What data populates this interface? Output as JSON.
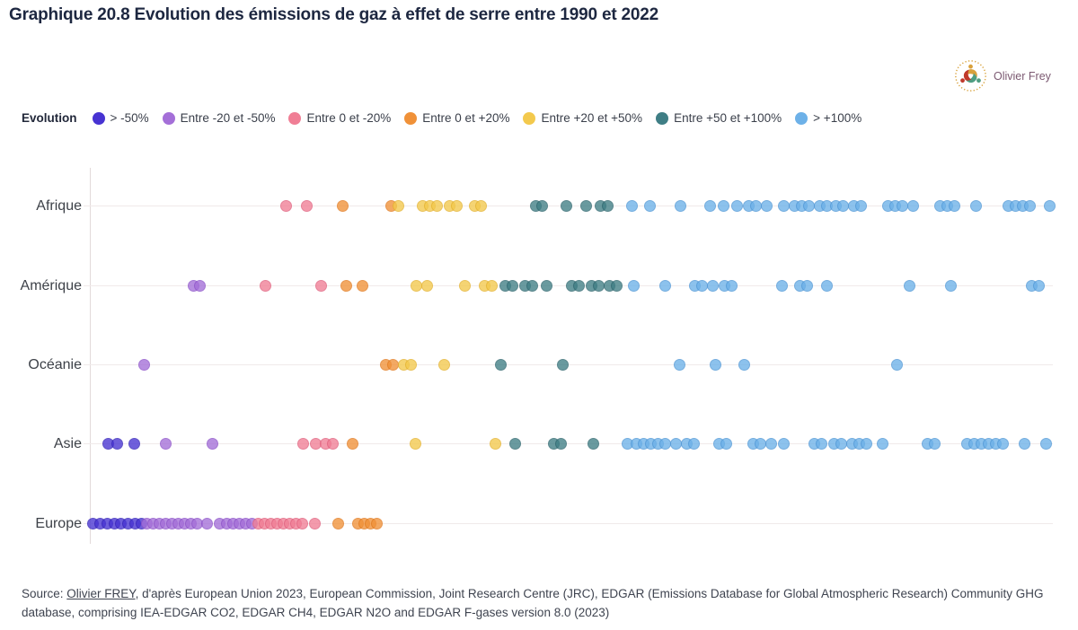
{
  "header": {
    "title": "Graphique 20.8 Evolution des émissions de gaz à effet de serre entre 1990 et 2022"
  },
  "logo": {
    "text": "Olivier Frey"
  },
  "source": {
    "prefix": "Source: ",
    "link_text": "Olivier FREY",
    "rest": ", d'après European Union 2023, European Commission, Joint Research Centre (JRC), EDGAR (Emissions Database for Global Atmospheric Research) Community GHG database, comprising IEA-EDGAR CO2, EDGAR CH4, EDGAR N2O and EDGAR F-gases version 8.0 (2023)"
  },
  "chart_data": {
    "type": "scatter",
    "variant": "categorical-strip-dot-plot",
    "title": "Graphique 20.8 Evolution des émissions de gaz à effet de serre entre 1990 et 2022",
    "x_axis": {
      "visible": false,
      "note": "no numeric x scale shown; dot x values are pixel offsets within the 1072px-wide plot band, one dot per country"
    },
    "grid": "horizontal-row-lines",
    "legend": {
      "title": "Evolution",
      "position": "top",
      "items": [
        {
          "label": "> -50%",
          "color": "#4733d2",
          "stroke": "#3423b8"
        },
        {
          "label": "Entre -20 et -50%",
          "color": "#a46fd8",
          "stroke": "#8c52c8"
        },
        {
          "label": "Entre 0 et -20%",
          "color": "#f07e95",
          "stroke": "#e05f7d"
        },
        {
          "label": "Entre 0 et +20%",
          "color": "#f09138",
          "stroke": "#e17a1f"
        },
        {
          "label": "Entre +20 et +50%",
          "color": "#f3c94d",
          "stroke": "#e4b22e"
        },
        {
          "label": "Entre +50 et +100%",
          "color": "#3f7e85",
          "stroke": "#2e666e"
        },
        {
          "label": "> +100%",
          "color": "#6db1e8",
          "stroke": "#4f97d6"
        }
      ]
    },
    "rows": [
      {
        "label": "Afrique",
        "dots": [
          [
            218,
            2
          ],
          [
            241,
            2
          ],
          [
            281,
            3
          ],
          [
            335,
            3
          ],
          [
            343,
            4
          ],
          [
            370,
            4
          ],
          [
            378,
            4
          ],
          [
            386,
            4
          ],
          [
            400,
            4
          ],
          [
            408,
            4
          ],
          [
            428,
            4
          ],
          [
            435,
            4
          ],
          [
            496,
            5
          ],
          [
            503,
            5
          ],
          [
            530,
            5
          ],
          [
            552,
            5
          ],
          [
            568,
            5
          ],
          [
            576,
            5
          ],
          [
            603,
            6
          ],
          [
            623,
            6
          ],
          [
            657,
            6
          ],
          [
            690,
            6
          ],
          [
            705,
            6
          ],
          [
            720,
            6
          ],
          [
            733,
            6
          ],
          [
            741,
            6
          ],
          [
            753,
            6
          ],
          [
            772,
            6
          ],
          [
            784,
            6
          ],
          [
            792,
            6
          ],
          [
            800,
            6
          ],
          [
            812,
            6
          ],
          [
            820,
            6
          ],
          [
            830,
            6
          ],
          [
            838,
            6
          ],
          [
            850,
            6
          ],
          [
            858,
            6
          ],
          [
            888,
            6
          ],
          [
            896,
            6
          ],
          [
            904,
            6
          ],
          [
            916,
            6
          ],
          [
            946,
            6
          ],
          [
            954,
            6
          ],
          [
            962,
            6
          ],
          [
            986,
            6
          ],
          [
            1022,
            6
          ],
          [
            1030,
            6
          ],
          [
            1038,
            6
          ],
          [
            1046,
            6
          ],
          [
            1068,
            6
          ]
        ]
      },
      {
        "label": "Amérique",
        "dots": [
          [
            115,
            1
          ],
          [
            122,
            1
          ],
          [
            195,
            2
          ],
          [
            257,
            2
          ],
          [
            285,
            3
          ],
          [
            303,
            3
          ],
          [
            363,
            4
          ],
          [
            375,
            4
          ],
          [
            417,
            4
          ],
          [
            439,
            4
          ],
          [
            447,
            4
          ],
          [
            462,
            5
          ],
          [
            470,
            5
          ],
          [
            484,
            5
          ],
          [
            492,
            5
          ],
          [
            508,
            5
          ],
          [
            536,
            5
          ],
          [
            544,
            5
          ],
          [
            558,
            5
          ],
          [
            566,
            5
          ],
          [
            578,
            5
          ],
          [
            586,
            5
          ],
          [
            605,
            6
          ],
          [
            640,
            6
          ],
          [
            673,
            6
          ],
          [
            681,
            6
          ],
          [
            693,
            6
          ],
          [
            706,
            6
          ],
          [
            714,
            6
          ],
          [
            770,
            6
          ],
          [
            790,
            6
          ],
          [
            798,
            6
          ],
          [
            820,
            6
          ],
          [
            912,
            6
          ],
          [
            958,
            6
          ],
          [
            1048,
            6
          ],
          [
            1056,
            6
          ]
        ]
      },
      {
        "label": "Océanie",
        "dots": [
          [
            60,
            1
          ],
          [
            329,
            3
          ],
          [
            337,
            3
          ],
          [
            349,
            4
          ],
          [
            357,
            4
          ],
          [
            394,
            4
          ],
          [
            457,
            5
          ],
          [
            526,
            5
          ],
          [
            656,
            6
          ],
          [
            696,
            6
          ],
          [
            728,
            6
          ],
          [
            898,
            6
          ]
        ]
      },
      {
        "label": "Asie",
        "dots": [
          [
            20,
            0
          ],
          [
            30,
            0
          ],
          [
            49,
            0
          ],
          [
            84,
            1
          ],
          [
            136,
            1
          ],
          [
            237,
            2
          ],
          [
            251,
            2
          ],
          [
            262,
            2
          ],
          [
            270,
            2
          ],
          [
            292,
            3
          ],
          [
            362,
            4
          ],
          [
            451,
            4
          ],
          [
            473,
            5
          ],
          [
            516,
            5
          ],
          [
            524,
            5
          ],
          [
            560,
            5
          ],
          [
            598,
            6
          ],
          [
            608,
            6
          ],
          [
            616,
            6
          ],
          [
            624,
            6
          ],
          [
            632,
            6
          ],
          [
            640,
            6
          ],
          [
            652,
            6
          ],
          [
            664,
            6
          ],
          [
            672,
            6
          ],
          [
            700,
            6
          ],
          [
            708,
            6
          ],
          [
            738,
            6
          ],
          [
            746,
            6
          ],
          [
            758,
            6
          ],
          [
            772,
            6
          ],
          [
            806,
            6
          ],
          [
            814,
            6
          ],
          [
            828,
            6
          ],
          [
            836,
            6
          ],
          [
            848,
            6
          ],
          [
            856,
            6
          ],
          [
            864,
            6
          ],
          [
            882,
            6
          ],
          [
            932,
            6
          ],
          [
            940,
            6
          ],
          [
            976,
            6
          ],
          [
            984,
            6
          ],
          [
            992,
            6
          ],
          [
            1000,
            6
          ],
          [
            1008,
            6
          ],
          [
            1016,
            6
          ],
          [
            1040,
            6
          ],
          [
            1064,
            6
          ]
        ]
      },
      {
        "label": "Europe",
        "dots": [
          [
            3,
            0
          ],
          [
            11,
            0
          ],
          [
            19,
            0
          ],
          [
            27,
            0
          ],
          [
            34,
            0
          ],
          [
            42,
            0
          ],
          [
            50,
            0
          ],
          [
            57,
            0
          ],
          [
            63,
            1
          ],
          [
            70,
            1
          ],
          [
            77,
            1
          ],
          [
            84,
            1
          ],
          [
            91,
            1
          ],
          [
            98,
            1
          ],
          [
            105,
            1
          ],
          [
            112,
            1
          ],
          [
            119,
            1
          ],
          [
            130,
            1
          ],
          [
            144,
            1
          ],
          [
            152,
            1
          ],
          [
            159,
            1
          ],
          [
            166,
            1
          ],
          [
            173,
            1
          ],
          [
            180,
            1
          ],
          [
            187,
            2
          ],
          [
            194,
            2
          ],
          [
            201,
            2
          ],
          [
            208,
            2
          ],
          [
            215,
            2
          ],
          [
            222,
            2
          ],
          [
            229,
            2
          ],
          [
            236,
            2
          ],
          [
            250,
            2
          ],
          [
            276,
            3
          ],
          [
            298,
            3
          ],
          [
            305,
            3
          ],
          [
            312,
            3
          ],
          [
            319,
            3
          ]
        ]
      }
    ]
  }
}
